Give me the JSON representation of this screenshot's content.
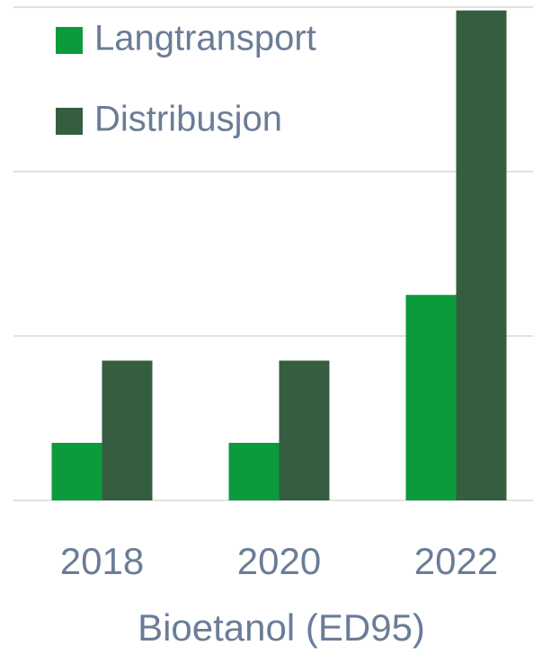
{
  "chart_data": {
    "type": "bar",
    "categories": [
      "2018",
      "2020",
      "2022"
    ],
    "series": [
      {
        "name": "Langtransport",
        "color": "#0b9a3c",
        "values": [
          0.35,
          0.35,
          1.25
        ]
      },
      {
        "name": "Distribusjon",
        "color": "#345e3f",
        "values": [
          0.85,
          0.85,
          2.98
        ]
      }
    ],
    "x_label": "Bioetanol (ED95)",
    "ylim": [
      0,
      3
    ],
    "yticks": [
      0,
      1,
      2,
      3
    ],
    "grid": true,
    "legend": "upper left"
  }
}
